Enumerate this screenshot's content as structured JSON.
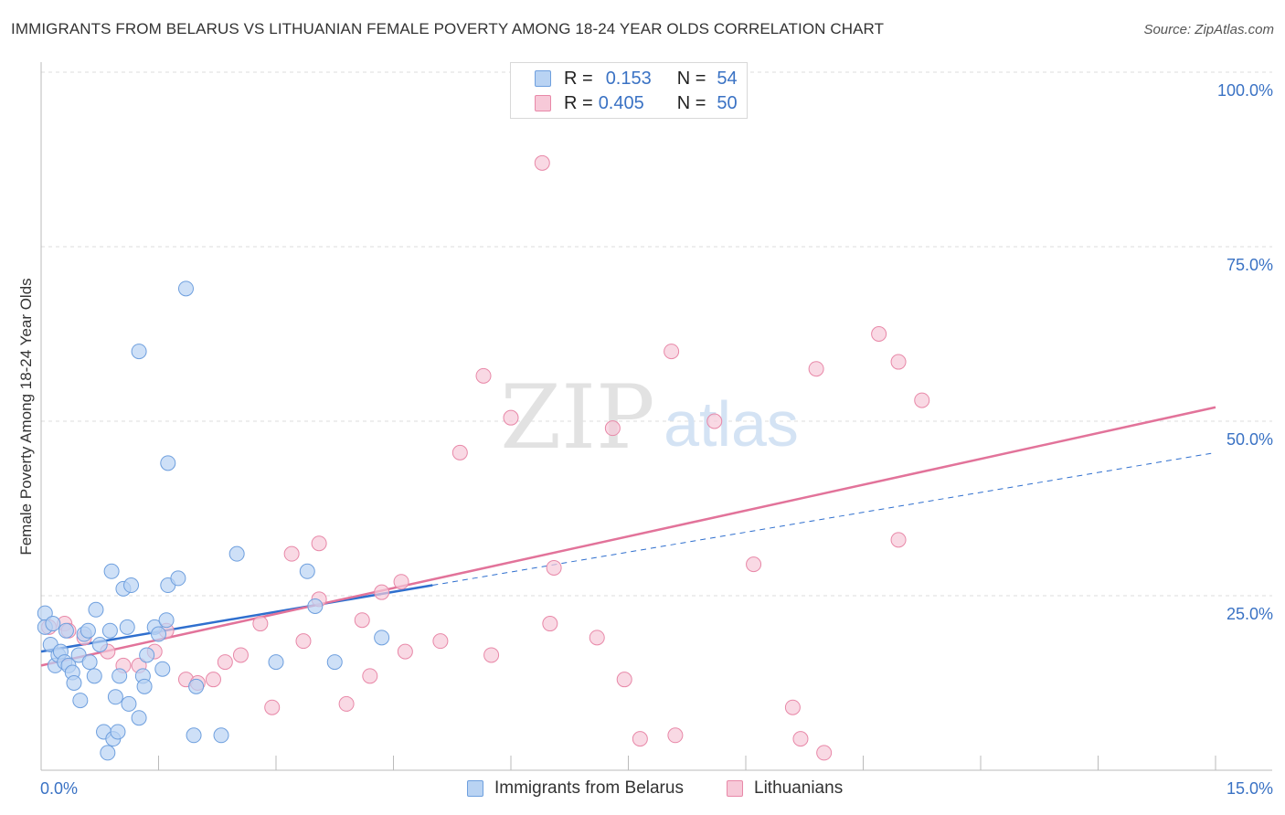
{
  "title": "IMMIGRANTS FROM BELARUS VS LITHUANIAN FEMALE POVERTY AMONG 18-24 YEAR OLDS CORRELATION CHART",
  "source": "Source: ZipAtlas.com",
  "watermark": {
    "zip": "ZIP",
    "atlas": "atlas"
  },
  "legend": {
    "rows": [
      {
        "r_label": "R =",
        "r_value": "0.153",
        "n_label": "N =",
        "n_value": "54"
      },
      {
        "r_label": "R =",
        "r_value": "0.405",
        "n_label": "N =",
        "n_value": "50"
      }
    ]
  },
  "colors": {
    "blue_fill": "#b9d3f3",
    "blue_stroke": "#6e9fde",
    "blue_line": "#2f6fce",
    "pink_fill": "#f7c9d8",
    "pink_stroke": "#e888a8",
    "pink_line": "#e2739a",
    "tick_text": "#3a72c4"
  },
  "chart_data": {
    "type": "scatter",
    "ylabel": "Female Poverty Among 18-24 Year Olds",
    "x_tick_labels": [
      "0.0%",
      "15.0%"
    ],
    "y_tick_labels": [
      "100.0%",
      "75.0%",
      "50.0%",
      "25.0%"
    ],
    "xlim": [
      0,
      15
    ],
    "ylim": [
      0,
      100
    ],
    "grid": true,
    "series": [
      {
        "name": "Immigrants from Belarus",
        "color": "#b9d3f3",
        "points": [
          [
            0.05,
            22.5
          ],
          [
            0.05,
            20.5
          ],
          [
            0.12,
            18
          ],
          [
            0.15,
            21
          ],
          [
            0.18,
            15
          ],
          [
            0.22,
            16.5
          ],
          [
            0.25,
            17
          ],
          [
            0.3,
            15.5
          ],
          [
            0.32,
            20
          ],
          [
            0.35,
            15
          ],
          [
            0.4,
            14
          ],
          [
            0.42,
            12.5
          ],
          [
            0.48,
            16.5
          ],
          [
            0.5,
            10
          ],
          [
            0.55,
            19.5
          ],
          [
            0.6,
            20
          ],
          [
            0.62,
            15.5
          ],
          [
            0.68,
            13.5
          ],
          [
            0.7,
            23
          ],
          [
            0.75,
            18
          ],
          [
            0.8,
            5.5
          ],
          [
            0.85,
            2.5
          ],
          [
            0.88,
            20
          ],
          [
            0.9,
            28.5
          ],
          [
            0.92,
            4.5
          ],
          [
            0.95,
            10.5
          ],
          [
            1.0,
            13.5
          ],
          [
            1.05,
            26
          ],
          [
            1.1,
            20.5
          ],
          [
            1.12,
            9.5
          ],
          [
            1.15,
            26.5
          ],
          [
            1.25,
            7.5
          ],
          [
            1.3,
            13.5
          ],
          [
            1.32,
            12
          ],
          [
            1.35,
            16.5
          ],
          [
            1.45,
            20.5
          ],
          [
            1.5,
            19.5
          ],
          [
            1.55,
            14.5
          ],
          [
            1.6,
            21.5
          ],
          [
            1.62,
            26.5
          ],
          [
            1.75,
            27.5
          ],
          [
            1.85,
            69
          ],
          [
            1.95,
            5
          ],
          [
            1.98,
            12
          ],
          [
            2.3,
            5
          ],
          [
            2.5,
            31
          ],
          [
            3.0,
            15.5
          ],
          [
            3.4,
            28.5
          ],
          [
            3.5,
            23.5
          ],
          [
            3.75,
            15.5
          ],
          [
            4.35,
            19
          ],
          [
            1.25,
            60
          ],
          [
            1.62,
            44
          ],
          [
            0.98,
            5.5
          ]
        ]
      },
      {
        "name": "Lithuanians",
        "color": "#f7c9d8",
        "points": [
          [
            0.1,
            20.5
          ],
          [
            0.3,
            21
          ],
          [
            0.35,
            20
          ],
          [
            0.55,
            19
          ],
          [
            0.85,
            17
          ],
          [
            1.05,
            15
          ],
          [
            1.25,
            15
          ],
          [
            1.45,
            17
          ],
          [
            1.6,
            20
          ],
          [
            1.85,
            13
          ],
          [
            2.0,
            12.5
          ],
          [
            2.2,
            13
          ],
          [
            2.35,
            15.5
          ],
          [
            2.55,
            16.5
          ],
          [
            2.8,
            21
          ],
          [
            2.95,
            9
          ],
          [
            3.2,
            31
          ],
          [
            3.35,
            18.5
          ],
          [
            3.55,
            24.5
          ],
          [
            3.55,
            32.5
          ],
          [
            3.9,
            9.5
          ],
          [
            4.1,
            21.5
          ],
          [
            4.2,
            13.5
          ],
          [
            4.35,
            25.5
          ],
          [
            4.6,
            27
          ],
          [
            4.65,
            17
          ],
          [
            5.1,
            18.5
          ],
          [
            5.35,
            45.5
          ],
          [
            5.65,
            56.5
          ],
          [
            5.75,
            16.5
          ],
          [
            6.0,
            50.5
          ],
          [
            6.4,
            87
          ],
          [
            6.55,
            29
          ],
          [
            6.5,
            21
          ],
          [
            7.1,
            19
          ],
          [
            7.3,
            49
          ],
          [
            7.45,
            13
          ],
          [
            7.65,
            4.5
          ],
          [
            8.05,
            60
          ],
          [
            8.1,
            5
          ],
          [
            8.6,
            50
          ],
          [
            9.1,
            29.5
          ],
          [
            9.6,
            9
          ],
          [
            9.7,
            4.5
          ],
          [
            9.9,
            57.5
          ],
          [
            10.0,
            2.5
          ],
          [
            10.7,
            62.5
          ],
          [
            10.95,
            33
          ],
          [
            10.95,
            58.5
          ],
          [
            11.25,
            53
          ]
        ]
      }
    ],
    "trendlines": [
      {
        "series": "Immigrants from Belarus",
        "style": "solid",
        "x": [
          0.0,
          5.0
        ],
        "y": [
          17.0,
          26.5
        ]
      },
      {
        "series": "Immigrants from Belarus",
        "style": "dashed",
        "x": [
          5.0,
          15.0
        ],
        "y": [
          26.5,
          45.5
        ]
      },
      {
        "series": "Lithuanians",
        "style": "solid",
        "x": [
          0.0,
          15.0
        ],
        "y": [
          15.0,
          52.0
        ]
      }
    ]
  },
  "bottom_legend": [
    "Immigrants from Belarus",
    "Lithuanians"
  ]
}
